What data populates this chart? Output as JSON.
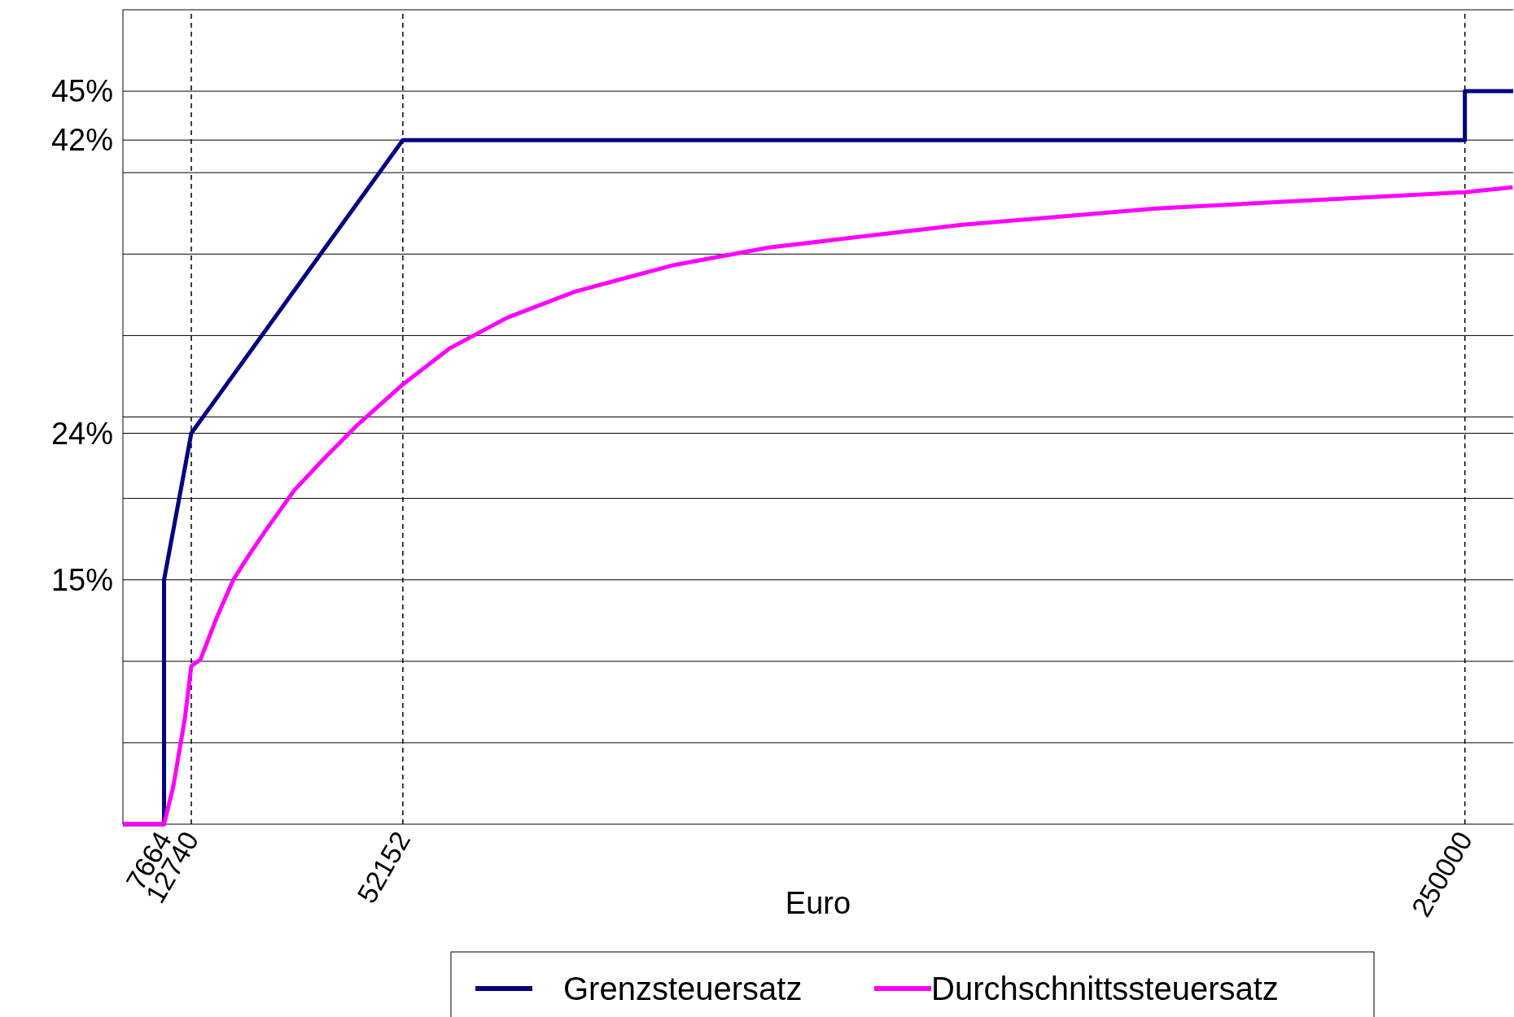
{
  "chart_data": {
    "type": "line",
    "xlabel": "Euro",
    "xlim": [
      0,
      259000
    ],
    "ylim": [
      0,
      50
    ],
    "xticks": [
      7664,
      12740,
      52152,
      250000
    ],
    "yticks": [
      {
        "value": 5,
        "label": null
      },
      {
        "value": 10,
        "label": null
      },
      {
        "value": 15,
        "label": "15%"
      },
      {
        "value": 20,
        "label": null
      },
      {
        "value": 24,
        "label": "24%"
      },
      {
        "value": 25,
        "label": null
      },
      {
        "value": 30,
        "label": null
      },
      {
        "value": 35,
        "label": null
      },
      {
        "value": 40,
        "label": null
      },
      {
        "value": 42,
        "label": "42%"
      },
      {
        "value": 45,
        "label": "45%"
      }
    ],
    "grid": "y",
    "legend": "bottom",
    "line_style": "solid",
    "marker": "none",
    "ref_lines": [
      {
        "axis": "x",
        "value": 12740,
        "line_style": "dashed",
        "color": "#000000"
      },
      {
        "axis": "x",
        "value": 52152,
        "line_style": "dashed",
        "color": "#000000"
      },
      {
        "axis": "x",
        "value": 250000,
        "line_style": "dashed",
        "color": "#000000"
      }
    ],
    "series": [
      {
        "name": "Grenzsteuersatz",
        "color": "#000080",
        "x": [
          0,
          7664,
          7664,
          12740,
          52152,
          250000,
          250000,
          259000
        ],
        "values": [
          0,
          0,
          15,
          24,
          42,
          42,
          45,
          45
        ]
      },
      {
        "name": "Durchschnittssteuersatz",
        "color": "#ff00ff",
        "x": [
          0,
          7664,
          9380,
          11545,
          12740,
          14430,
          17500,
          20560,
          23450,
          26520,
          31930,
          37340,
          43660,
          52152,
          60800,
          71620,
          84250,
          102300,
          120300,
          156400,
          192500,
          250000,
          258900
        ],
        "values": [
          0,
          0,
          2.3,
          6.5,
          9.7,
          10.1,
          12.7,
          15,
          16.5,
          18,
          20.5,
          22.4,
          24.5,
          27,
          29.2,
          31.1,
          32.7,
          34.3,
          35.4,
          36.8,
          37.8,
          38.8,
          39.1
        ]
      }
    ]
  }
}
